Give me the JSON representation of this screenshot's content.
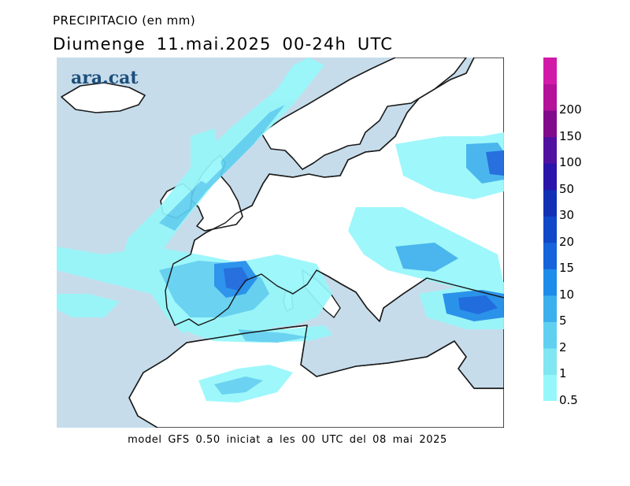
{
  "header": {
    "title": "PRECIPITACIO (en mm)",
    "subtitle": "Diumenge 11.mai.2025 00-24h UTC"
  },
  "brand": {
    "text": "ara.cat"
  },
  "footer": {
    "text": "model GFS 0.50 iniciat a les 00 UTC del 08 mai 2025"
  },
  "colors": {
    "sea": "#c6dceb",
    "land": "#ffffff",
    "coast": "#1a1a1a"
  },
  "legend": {
    "levels": [
      {
        "label": "0.5",
        "color": "#96f7fa"
      },
      {
        "label": "1",
        "color": "#7fe6f2"
      },
      {
        "label": "2",
        "color": "#5fd0f0"
      },
      {
        "label": "5",
        "color": "#3cb0ec"
      },
      {
        "label": "10",
        "color": "#1e8cea"
      },
      {
        "label": "15",
        "color": "#1564dc"
      },
      {
        "label": "20",
        "color": "#0f48c8"
      },
      {
        "label": "30",
        "color": "#1230b4"
      },
      {
        "label": "50",
        "color": "#2a14aa"
      },
      {
        "label": "100",
        "color": "#5010a0"
      },
      {
        "label": "150",
        "color": "#800c8c"
      },
      {
        "label": "200",
        "color": "#b4109a"
      },
      {
        "label": "",
        "color": "#d21aa8"
      }
    ]
  }
}
